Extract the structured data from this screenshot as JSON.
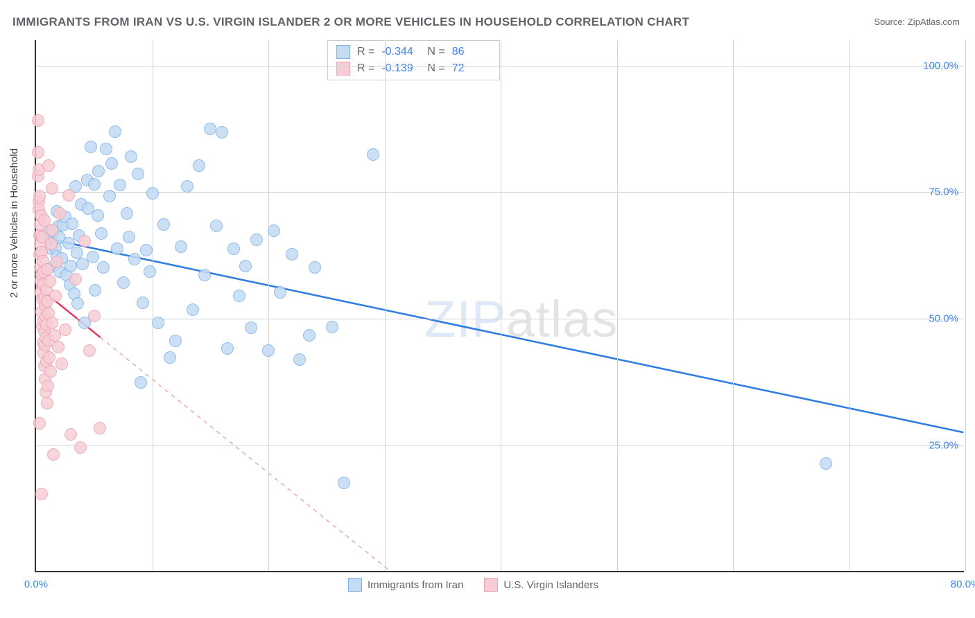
{
  "title": "IMMIGRANTS FROM IRAN VS U.S. VIRGIN ISLANDER 2 OR MORE VEHICLES IN HOUSEHOLD CORRELATION CHART",
  "source_label": "Source: ",
  "source_name": "ZipAtlas.com",
  "ylabel": "2 or more Vehicles in Household",
  "watermark_a": "ZIP",
  "watermark_b": "atlas",
  "chart": {
    "type": "scatter-with-regression",
    "xlim": [
      0,
      80
    ],
    "ylim": [
      0,
      105
    ],
    "xtick_values": [
      0,
      80
    ],
    "xtick_labels": [
      "0.0%",
      "80.0%"
    ],
    "xgrid_values": [
      10,
      20,
      30,
      40,
      50,
      60,
      70,
      80
    ],
    "ytick_values": [
      25,
      50,
      75,
      100
    ],
    "ytick_labels": [
      "25.0%",
      "50.0%",
      "75.0%",
      "100.0%"
    ],
    "ytick_color": "#3b82f6",
    "xtick_color": "#3b82f6",
    "grid_color": "#d0d5da",
    "background_color": "#ffffff",
    "marker_radius": 9,
    "series": [
      {
        "name": "Immigrants from Iran",
        "fill": "#c4dbf4",
        "stroke": "#7fb2e6",
        "line_color": "#2f7de1",
        "R": "-0.344",
        "N": "86",
        "points": [
          [
            0.9,
            65.6
          ],
          [
            1,
            66.5
          ],
          [
            1,
            67
          ],
          [
            1.2,
            65.8
          ],
          [
            1.3,
            63.8
          ],
          [
            1.4,
            66.4
          ],
          [
            1.5,
            67.2
          ],
          [
            1.6,
            60.5
          ],
          [
            1.7,
            64
          ],
          [
            1.8,
            62.4
          ],
          [
            1.9,
            68.2
          ],
          [
            2,
            66
          ],
          [
            2,
            59.4
          ],
          [
            2.2,
            62
          ],
          [
            2.3,
            68.5
          ],
          [
            2.5,
            70.2
          ],
          [
            2.6,
            58.6
          ],
          [
            2.8,
            65
          ],
          [
            2.9,
            56.8
          ],
          [
            3,
            60.4
          ],
          [
            3.1,
            68.8
          ],
          [
            3.3,
            55
          ],
          [
            3.4,
            76.2
          ],
          [
            3.5,
            63
          ],
          [
            3.6,
            53
          ],
          [
            3.7,
            66.4
          ],
          [
            3.9,
            72.6
          ],
          [
            4,
            60.8
          ],
          [
            4.2,
            49.2
          ],
          [
            4.4,
            77.4
          ],
          [
            4.5,
            71.8
          ],
          [
            4.7,
            84
          ],
          [
            4.9,
            62.2
          ],
          [
            5,
            76.5
          ],
          [
            5.1,
            55.6
          ],
          [
            5.3,
            70.4
          ],
          [
            5.4,
            79.2
          ],
          [
            5.6,
            66.8
          ],
          [
            5.8,
            60.2
          ],
          [
            6,
            83.6
          ],
          [
            6.3,
            74.2
          ],
          [
            6.5,
            80.6
          ],
          [
            6.8,
            87
          ],
          [
            7,
            63.8
          ],
          [
            7.2,
            76.4
          ],
          [
            7.5,
            57.2
          ],
          [
            7.8,
            70.8
          ],
          [
            8,
            66.2
          ],
          [
            8.2,
            82
          ],
          [
            8.5,
            61.8
          ],
          [
            8.8,
            78.6
          ],
          [
            9,
            37.5
          ],
          [
            9.2,
            53.2
          ],
          [
            9.5,
            63.6
          ],
          [
            9.8,
            59.4
          ],
          [
            10,
            74.8
          ],
          [
            10.5,
            49.2
          ],
          [
            11,
            68.6
          ],
          [
            11.5,
            42.4
          ],
          [
            12,
            45.6
          ],
          [
            12.5,
            64.2
          ],
          [
            13,
            76.2
          ],
          [
            13.5,
            51.8
          ],
          [
            14,
            80.2
          ],
          [
            14.5,
            58.6
          ],
          [
            15,
            87.5
          ],
          [
            15.5,
            68.4
          ],
          [
            16,
            86.8
          ],
          [
            16.5,
            44.2
          ],
          [
            17,
            63.8
          ],
          [
            17.5,
            54.6
          ],
          [
            18,
            60.4
          ],
          [
            18.5,
            48.2
          ],
          [
            19,
            65.6
          ],
          [
            20,
            43.8
          ],
          [
            20.5,
            67.4
          ],
          [
            21,
            55.2
          ],
          [
            22,
            62.8
          ],
          [
            22.7,
            42
          ],
          [
            23.5,
            46.8
          ],
          [
            24,
            60.2
          ],
          [
            25.5,
            48.4
          ],
          [
            26.5,
            17.6
          ],
          [
            29,
            82.5
          ],
          [
            68,
            21.4
          ],
          [
            1.8,
            71.2
          ]
        ],
        "trend": {
          "x1": 0,
          "y1": 66.2,
          "x2": 80,
          "y2": 27.4
        }
      },
      {
        "name": "U.S. Virgin Islanders",
        "fill": "#f7cdd5",
        "stroke": "#eca2b2",
        "line_color": "#e43a64",
        "R": "-0.139",
        "N": "72",
        "points": [
          [
            0.15,
            89.2
          ],
          [
            0.18,
            82.8
          ],
          [
            0.2,
            78.2
          ],
          [
            0.22,
            73.2
          ],
          [
            0.24,
            79.4
          ],
          [
            0.26,
            71.6
          ],
          [
            0.28,
            66.4
          ],
          [
            0.3,
            74.2
          ],
          [
            0.32,
            62.8
          ],
          [
            0.34,
            68.6
          ],
          [
            0.36,
            60.2
          ],
          [
            0.38,
            64.8
          ],
          [
            0.4,
            57.6
          ],
          [
            0.42,
            70.4
          ],
          [
            0.44,
            55.2
          ],
          [
            0.46,
            63.2
          ],
          [
            0.48,
            58.8
          ],
          [
            0.5,
            51.4
          ],
          [
            0.52,
            66.2
          ],
          [
            0.54,
            48.6
          ],
          [
            0.56,
            53.8
          ],
          [
            0.58,
            61.4
          ],
          [
            0.6,
            45.2
          ],
          [
            0.62,
            56.8
          ],
          [
            0.64,
            49.6
          ],
          [
            0.66,
            43.4
          ],
          [
            0.68,
            59.2
          ],
          [
            0.7,
            54.2
          ],
          [
            0.72,
            40.8
          ],
          [
            0.74,
            47.4
          ],
          [
            0.76,
            52.6
          ],
          [
            0.78,
            44.8
          ],
          [
            0.8,
            38.2
          ],
          [
            0.82,
            50.4
          ],
          [
            0.84,
            35.6
          ],
          [
            0.86,
            46.2
          ],
          [
            0.88,
            55.8
          ],
          [
            0.9,
            41.6
          ],
          [
            0.92,
            48.8
          ],
          [
            0.94,
            33.4
          ],
          [
            0.96,
            53.4
          ],
          [
            0.98,
            59.8
          ],
          [
            1,
            36.8
          ],
          [
            1.05,
            45.6
          ],
          [
            1.1,
            51.2
          ],
          [
            1.15,
            42.4
          ],
          [
            1.2,
            57.4
          ],
          [
            1.25,
            39.6
          ],
          [
            1.3,
            64.8
          ],
          [
            1.35,
            49.2
          ],
          [
            1.4,
            67.6
          ],
          [
            1.5,
            23.2
          ],
          [
            1.6,
            46.8
          ],
          [
            1.7,
            54.6
          ],
          [
            1.8,
            61.2
          ],
          [
            1.9,
            44.4
          ],
          [
            2,
            70.8
          ],
          [
            2.2,
            41.2
          ],
          [
            2.5,
            47.8
          ],
          [
            2.8,
            74.4
          ],
          [
            0.3,
            29.4
          ],
          [
            0.5,
            15.4
          ],
          [
            3,
            27.2
          ],
          [
            3.4,
            57.8
          ],
          [
            3.8,
            24.6
          ],
          [
            4.2,
            65.4
          ],
          [
            4.6,
            43.8
          ],
          [
            5,
            50.6
          ],
          [
            5.5,
            28.4
          ],
          [
            1.1,
            80.2
          ],
          [
            1.4,
            75.8
          ],
          [
            0.7,
            69.4
          ]
        ],
        "trend": {
          "x1": 0,
          "y1": 56.4,
          "x2": 5.5,
          "y2": 46.2
        },
        "trend_dash": {
          "x1": 5.5,
          "y1": 46.2,
          "x2": 30.5,
          "y2": 0
        }
      }
    ]
  },
  "bottom_legend": [
    {
      "label": "Immigrants from Iran",
      "fill": "#c4dbf4",
      "stroke": "#7fb2e6"
    },
    {
      "label": "U.S. Virgin Islanders",
      "fill": "#f7cdd5",
      "stroke": "#eca2b2"
    }
  ]
}
